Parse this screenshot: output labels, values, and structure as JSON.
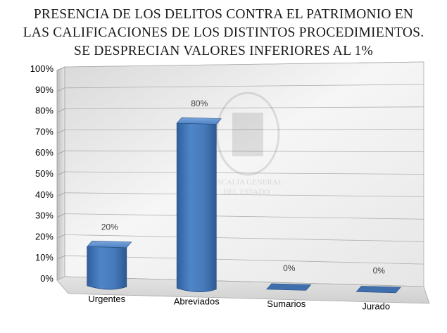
{
  "chart_data": {
    "type": "bar",
    "title_lines": [
      "PRESENCIA DE LOS DELITOS CONTRA EL PATRIMONIO EN",
      "LAS CALIFICACIONES DE LOS DISTINTOS PROCEDIMIENTOS.",
      "SE DESPRECIAN VALORES INFERIORES AL 1%"
    ],
    "categories": [
      "Urgentes",
      "Abreviados",
      "Sumarios",
      "Jurado"
    ],
    "values": [
      20,
      80,
      0,
      0
    ],
    "data_labels": [
      "20%",
      "80%",
      "0%",
      "0%"
    ],
    "yticks": [
      "0%",
      "10%",
      "20%",
      "30%",
      "40%",
      "50%",
      "60%",
      "70%",
      "80%",
      "90%",
      "100%"
    ],
    "ylim": [
      0,
      100
    ],
    "grid": true,
    "bar_color": "#4a7ebb",
    "watermark_lines": [
      "FISCALIA GENERAL",
      "DEL ESTADO"
    ]
  }
}
